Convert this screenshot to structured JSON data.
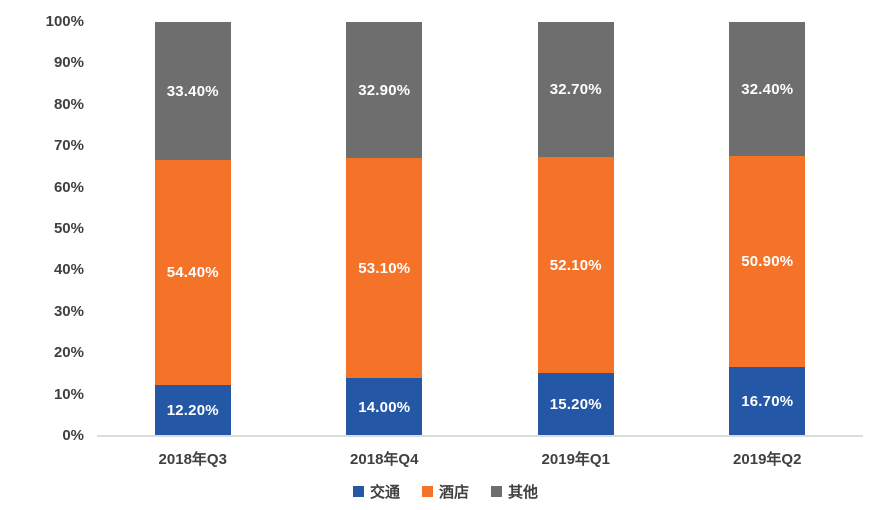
{
  "chart_data": {
    "type": "bar",
    "stacked": true,
    "percent_stacked": true,
    "title": "",
    "xlabel": "",
    "ylabel": "",
    "categories": [
      "2018年Q3",
      "2018年Q4",
      "2019年Q1",
      "2019年Q2"
    ],
    "series": [
      {
        "name": "交通",
        "color": "#2457A5",
        "values": [
          12.2,
          14.0,
          15.2,
          16.7
        ]
      },
      {
        "name": "酒店",
        "color": "#F47329",
        "values": [
          54.4,
          53.1,
          52.1,
          50.9
        ]
      },
      {
        "name": "其他",
        "color": "#6E6E6E",
        "values": [
          33.4,
          32.9,
          32.7,
          32.4
        ]
      }
    ],
    "data_label_suffix": "%",
    "data_label_decimals": 2,
    "ylim": [
      0,
      100
    ],
    "yticks": [
      "0%",
      "10%",
      "20%",
      "30%",
      "40%",
      "50%",
      "60%",
      "70%",
      "80%",
      "90%",
      "100%"
    ],
    "grid": false,
    "legend_position": "bottom"
  },
  "colors": {
    "background": "#FFFFFF",
    "axis_text": "#404040",
    "baseline": "#DBDBDB",
    "value_label_text": "#FFFFFF"
  }
}
